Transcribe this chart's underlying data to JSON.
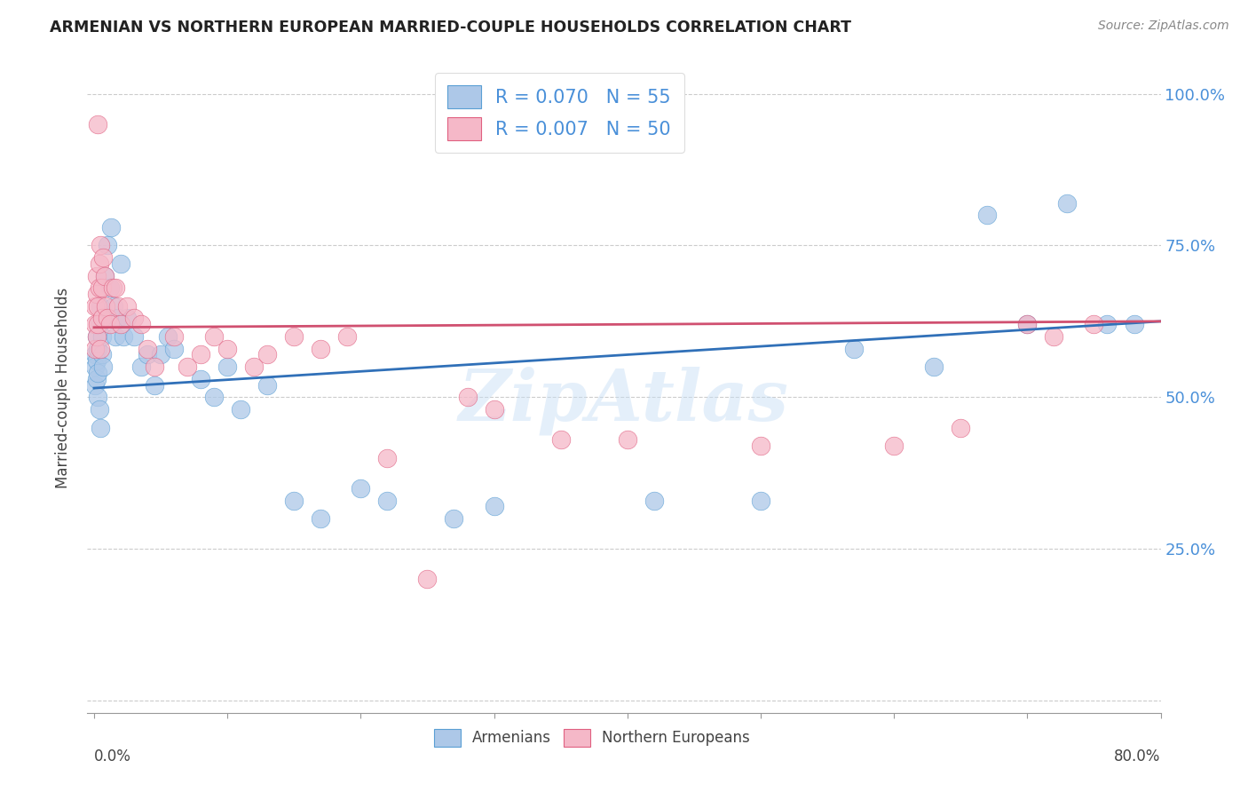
{
  "title": "ARMENIAN VS NORTHERN EUROPEAN MARRIED-COUPLE HOUSEHOLDS CORRELATION CHART",
  "source": "Source: ZipAtlas.com",
  "ylabel": "Married-couple Households",
  "ytick_positions": [
    0.0,
    0.25,
    0.5,
    0.75,
    1.0
  ],
  "ytick_labels": [
    "",
    "25.0%",
    "50.0%",
    "75.0%",
    "100.0%"
  ],
  "armenian_face_color": "#adc8e8",
  "northern_face_color": "#f5b8c8",
  "armenian_edge_color": "#5a9fd4",
  "northern_edge_color": "#e06080",
  "armenian_line_color": "#3070b8",
  "northern_line_color": "#d05070",
  "watermark": "ZipAtlas",
  "armenians_x": [
    0.001,
    0.001,
    0.001,
    0.002,
    0.002,
    0.002,
    0.003,
    0.003,
    0.003,
    0.004,
    0.004,
    0.005,
    0.005,
    0.006,
    0.006,
    0.007,
    0.008,
    0.009,
    0.01,
    0.012,
    0.013,
    0.015,
    0.016,
    0.018,
    0.02,
    0.022,
    0.025,
    0.03,
    0.035,
    0.04,
    0.045,
    0.05,
    0.055,
    0.06,
    0.08,
    0.09,
    0.1,
    0.11,
    0.13,
    0.15,
    0.17,
    0.2,
    0.22,
    0.27,
    0.3,
    0.42,
    0.5,
    0.57,
    0.63,
    0.67,
    0.7,
    0.73,
    0.76,
    0.78
  ],
  "armenians_y": [
    0.57,
    0.55,
    0.52,
    0.6,
    0.56,
    0.53,
    0.58,
    0.54,
    0.5,
    0.62,
    0.48,
    0.65,
    0.45,
    0.6,
    0.57,
    0.55,
    0.7,
    0.63,
    0.75,
    0.68,
    0.78,
    0.65,
    0.6,
    0.63,
    0.72,
    0.6,
    0.63,
    0.6,
    0.55,
    0.57,
    0.52,
    0.57,
    0.6,
    0.58,
    0.53,
    0.5,
    0.55,
    0.48,
    0.52,
    0.33,
    0.3,
    0.35,
    0.33,
    0.3,
    0.32,
    0.33,
    0.33,
    0.58,
    0.55,
    0.8,
    0.62,
    0.82,
    0.62,
    0.62
  ],
  "northern_x": [
    0.001,
    0.001,
    0.001,
    0.002,
    0.002,
    0.002,
    0.003,
    0.003,
    0.004,
    0.004,
    0.005,
    0.005,
    0.006,
    0.006,
    0.007,
    0.008,
    0.009,
    0.01,
    0.012,
    0.014,
    0.016,
    0.018,
    0.02,
    0.025,
    0.03,
    0.035,
    0.04,
    0.045,
    0.06,
    0.07,
    0.08,
    0.09,
    0.1,
    0.12,
    0.13,
    0.15,
    0.17,
    0.19,
    0.28,
    0.3,
    0.35,
    0.4,
    0.5,
    0.6,
    0.65,
    0.7,
    0.72,
    0.75,
    0.003,
    0.25,
    0.22
  ],
  "northern_y": [
    0.62,
    0.58,
    0.65,
    0.7,
    0.67,
    0.6,
    0.65,
    0.62,
    0.72,
    0.68,
    0.75,
    0.58,
    0.63,
    0.68,
    0.73,
    0.7,
    0.65,
    0.63,
    0.62,
    0.68,
    0.68,
    0.65,
    0.62,
    0.65,
    0.63,
    0.62,
    0.58,
    0.55,
    0.6,
    0.55,
    0.57,
    0.6,
    0.58,
    0.55,
    0.57,
    0.6,
    0.58,
    0.6,
    0.5,
    0.48,
    0.43,
    0.43,
    0.42,
    0.42,
    0.45,
    0.62,
    0.6,
    0.62,
    0.95,
    0.2,
    0.4
  ],
  "xlim": [
    -0.005,
    0.8
  ],
  "ylim": [
    -0.02,
    1.05
  ]
}
